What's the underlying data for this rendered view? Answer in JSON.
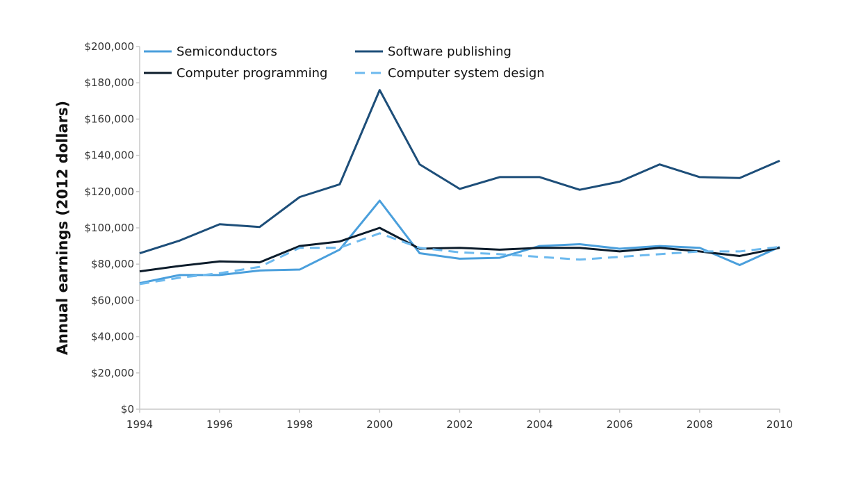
{
  "chart_data": {
    "type": "line",
    "title": "",
    "xlabel": "",
    "ylabel": "Annual earnings (2012 dollars)",
    "xlim": [
      1994,
      2010
    ],
    "ylim": [
      0,
      200000
    ],
    "grid": false,
    "legend_position": "top",
    "x_ticks": [
      1994,
      1996,
      1998,
      2000,
      2002,
      2004,
      2006,
      2008,
      2010
    ],
    "x_tick_labels": [
      "1994",
      "1996",
      "1998",
      "2000",
      "2002",
      "2004",
      "2006",
      "2008",
      "2010"
    ],
    "y_ticks": [
      0,
      20000,
      40000,
      60000,
      80000,
      100000,
      120000,
      140000,
      160000,
      180000,
      200000
    ],
    "y_tick_labels": [
      "$0",
      "$20,000",
      "$40,000",
      "$60,000",
      "$80,000",
      "$100,000",
      "$120,000",
      "$140,000",
      "$160,000",
      "$180,000",
      "$200,000"
    ],
    "x": [
      1994,
      1995,
      1996,
      1997,
      1998,
      1999,
      2000,
      2001,
      2002,
      2003,
      2004,
      2005,
      2006,
      2007,
      2008,
      2009,
      2010
    ],
    "series": [
      {
        "name": "Semiconductors",
        "color": "#4a9fdc",
        "dash": false,
        "values": [
          69500,
          74000,
          74000,
          76500,
          77000,
          88000,
          115000,
          86000,
          83000,
          83500,
          90000,
          91000,
          88500,
          90000,
          89000,
          79500,
          89500
        ]
      },
      {
        "name": "Software publishing",
        "color": "#1d4e79",
        "dash": false,
        "values": [
          86000,
          93000,
          102000,
          100500,
          117000,
          124000,
          176000,
          135000,
          121500,
          128000,
          128000,
          121000,
          125500,
          135000,
          128000,
          127500,
          137000
        ]
      },
      {
        "name": "Computer programming",
        "color": "#0c1c2b",
        "dash": false,
        "values": [
          76000,
          79000,
          81500,
          81000,
          90000,
          92500,
          100000,
          88500,
          89000,
          88000,
          89000,
          89000,
          87000,
          89000,
          87000,
          84500,
          89000
        ]
      },
      {
        "name": "Computer system design",
        "color": "#6cb9ee",
        "dash": true,
        "values": [
          69000,
          72500,
          75000,
          78500,
          89000,
          89000,
          97000,
          89000,
          86500,
          85500,
          84000,
          82500,
          84000,
          85500,
          87000,
          87000,
          89500
        ]
      }
    ]
  }
}
